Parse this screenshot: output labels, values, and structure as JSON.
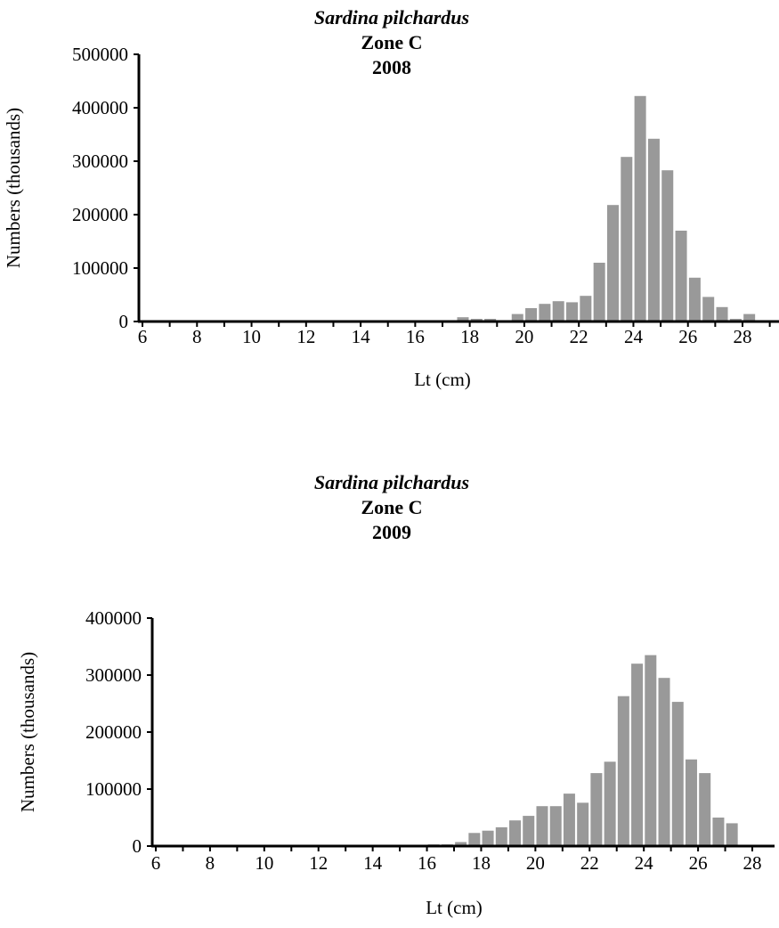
{
  "chart_data": [
    {
      "type": "bar",
      "title": "Sardina pilchardus",
      "subtitle_zone": "Zone C",
      "subtitle_year": "2008",
      "xlabel": "Lt (cm)",
      "ylabel": "Numbers (thousands)",
      "ylim": [
        0,
        500000
      ],
      "yticks": [
        "0",
        "100000",
        "200000",
        "300000",
        "400000",
        "500000"
      ],
      "xticks": [
        "6",
        "8",
        "10",
        "12",
        "14",
        "16",
        "18",
        "20",
        "22",
        "24",
        "26",
        "28"
      ],
      "x": [
        6,
        6.5,
        7,
        7.5,
        8,
        8.5,
        9,
        9.5,
        10,
        10.5,
        11,
        11.5,
        12,
        12.5,
        13,
        13.5,
        14,
        14.5,
        15,
        15.5,
        16,
        16.5,
        17,
        17.5,
        18,
        18.5,
        19,
        19.5,
        20,
        20.5,
        21,
        21.5,
        22,
        22.5,
        23,
        23.5,
        24,
        24.5,
        25,
        25.5,
        26,
        26.5,
        27,
        27.5,
        28
      ],
      "values": [
        0,
        0,
        0,
        0,
        0,
        0,
        0,
        0,
        0,
        0,
        0,
        0,
        0,
        0,
        0,
        0,
        0,
        0,
        0,
        0,
        0,
        0,
        0,
        8000,
        5000,
        5000,
        0,
        14000,
        25000,
        33000,
        38000,
        36000,
        48000,
        110000,
        218000,
        308000,
        422000,
        342000,
        283000,
        170000,
        82000,
        46000,
        27000,
        5000,
        14000
      ],
      "grid": false
    },
    {
      "type": "bar",
      "title": "Sardina pilchardus",
      "subtitle_zone": "Zone C",
      "subtitle_year": "2009",
      "xlabel": "Lt (cm)",
      "ylabel": "Numbers (thousands)",
      "ylim": [
        0,
        400000
      ],
      "yticks": [
        "0",
        "100000",
        "200000",
        "300000",
        "400000"
      ],
      "xticks": [
        "6",
        "8",
        "10",
        "12",
        "14",
        "16",
        "18",
        "20",
        "22",
        "24",
        "26",
        "28"
      ],
      "x": [
        6,
        6.5,
        7,
        7.5,
        8,
        8.5,
        9,
        9.5,
        10,
        10.5,
        11,
        11.5,
        12,
        12.5,
        13,
        13.5,
        14,
        14.5,
        15,
        15.5,
        16,
        16.5,
        17,
        17.5,
        18,
        18.5,
        19,
        19.5,
        20,
        20.5,
        21,
        21.5,
        22,
        22.5,
        23,
        23.5,
        24,
        24.5,
        25,
        25.5,
        26,
        26.5,
        27,
        27.5,
        28
      ],
      "values": [
        0,
        0,
        0,
        0,
        0,
        0,
        0,
        0,
        0,
        0,
        0,
        0,
        0,
        0,
        0,
        0,
        0,
        0,
        0,
        0,
        3000,
        3000,
        7000,
        23000,
        27000,
        33000,
        45000,
        53000,
        70000,
        70000,
        92000,
        76000,
        128000,
        148000,
        263000,
        320000,
        335000,
        295000,
        253000,
        152000,
        128000,
        50000,
        40000,
        0,
        0
      ],
      "grid": false
    }
  ],
  "colors": {
    "bar": "#999999",
    "axis": "#000000"
  }
}
